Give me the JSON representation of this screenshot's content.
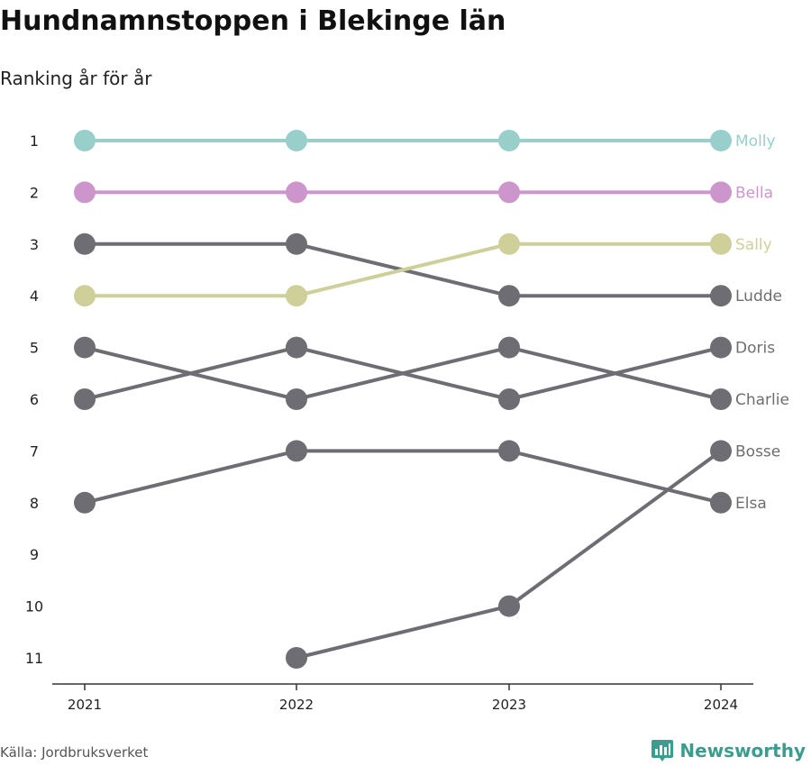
{
  "header": {
    "title": "Hundnamnstoppen i Blekinge län",
    "subtitle": "Ranking år för år"
  },
  "footer": {
    "source": "Källa: Jordbruksverket",
    "brand": "Newsworthy"
  },
  "colors": {
    "Molly": "#98cfca",
    "Bella": "#cc96cd",
    "Sally": "#cfcf9a",
    "default": "#6e6d73",
    "axis": "#333333",
    "brand": "#3a9e8f"
  },
  "chart_data": {
    "type": "line",
    "chart_kind": "bump",
    "x": [
      "2021",
      "2022",
      "2023",
      "2024"
    ],
    "y_ticks": [
      "1",
      "2",
      "3",
      "4",
      "5",
      "6",
      "7",
      "8",
      "9",
      "10",
      "11"
    ],
    "ylim": [
      1,
      11
    ],
    "y_inverted": true,
    "grid": false,
    "legend": "direct labels at line ends",
    "series": [
      {
        "name": "Molly",
        "values": [
          1,
          1,
          1,
          1
        ]
      },
      {
        "name": "Bella",
        "values": [
          2,
          2,
          2,
          2
        ]
      },
      {
        "name": "Sally",
        "values": [
          4,
          4,
          3,
          3
        ]
      },
      {
        "name": "Ludde",
        "values": [
          3,
          3,
          4,
          4
        ]
      },
      {
        "name": "Doris",
        "values": [
          6,
          5,
          6,
          5
        ]
      },
      {
        "name": "Charlie",
        "values": [
          5,
          6,
          5,
          6
        ]
      },
      {
        "name": "Bosse",
        "values": [
          null,
          11,
          10,
          7
        ]
      },
      {
        "name": "Elsa",
        "values": [
          8,
          7,
          7,
          8
        ]
      }
    ]
  }
}
